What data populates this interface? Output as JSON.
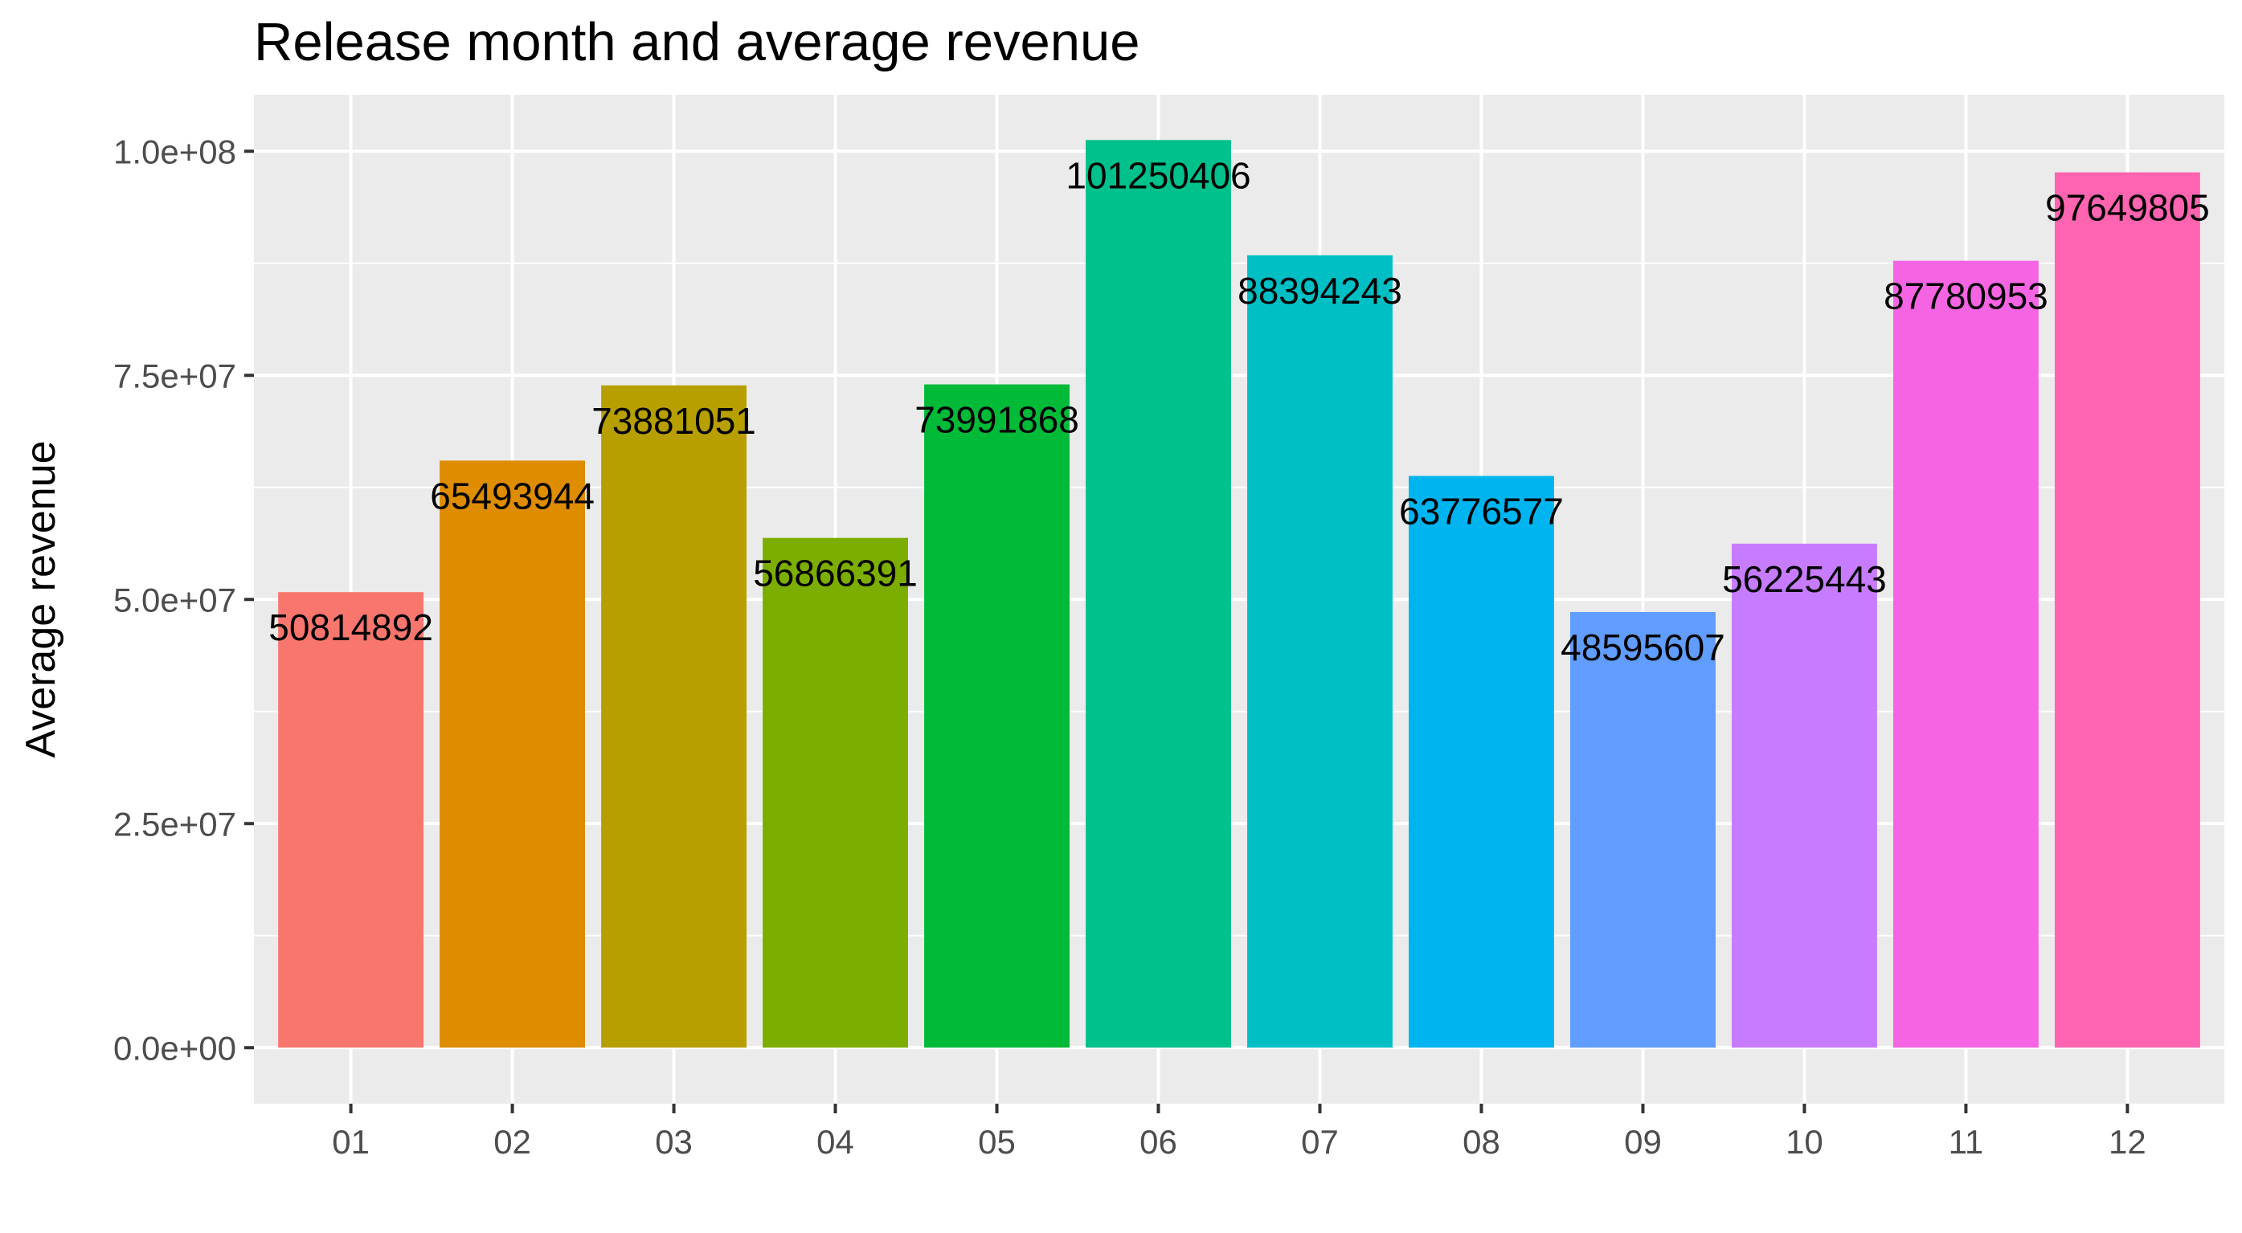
{
  "chart_data": {
    "type": "bar",
    "title": "Release month and average revenue",
    "xlabel": "",
    "ylabel": "Average revenue",
    "categories": [
      "01",
      "02",
      "03",
      "04",
      "05",
      "06",
      "07",
      "08",
      "09",
      "10",
      "11",
      "12"
    ],
    "values": [
      50814892,
      65493944,
      73881051,
      56866391,
      73991868,
      101250406,
      88394243,
      63776577,
      48595607,
      56225443,
      87780953,
      97649805
    ],
    "data_labels": [
      "50814892",
      "65493944",
      "73881051",
      "56866391",
      "73991868",
      "101250406",
      "88394243",
      "63776577",
      "48595607",
      "56225443",
      "87780953",
      "97649805"
    ],
    "colors": [
      "#F8766D",
      "#DE8C00",
      "#B79F00",
      "#7CAE00",
      "#00BA38",
      "#00C08B",
      "#00BFC4",
      "#00B4F0",
      "#619CFF",
      "#C77CFF",
      "#F564E3",
      "#FF64B0"
    ],
    "ylim": [
      -6250000,
      106300000
    ],
    "yticks": [
      0,
      25000000,
      50000000,
      75000000,
      100000000
    ],
    "ytick_labels": [
      "0.0e+00",
      "2.5e+07",
      "5.0e+07",
      "7.5e+07",
      "1.0e+08"
    ],
    "grid": true,
    "legend": "none",
    "panel_background": "#EBEBEB",
    "gridline_color": "#FFFFFF"
  }
}
